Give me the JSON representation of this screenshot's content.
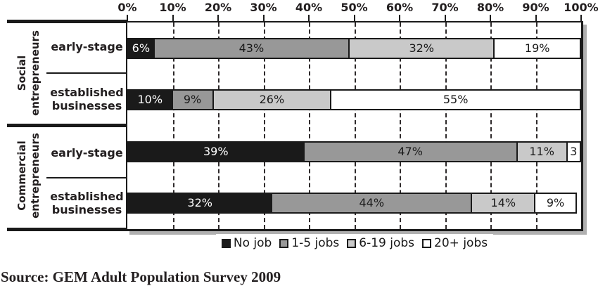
{
  "source_note": "Source: GEM Adult Population Survey 2009",
  "chart_data": {
    "type": "bar",
    "subtype": "horizontal-stacked-100-percent",
    "x_axis": {
      "tick_labels": [
        "0%",
        "10%",
        "20%",
        "30%",
        "40%",
        "50%",
        "60%",
        "70%",
        "80%",
        "90%",
        "100%"
      ],
      "range": [
        0,
        100
      ],
      "gridlines": "dashed-vertical"
    },
    "buckets": [
      "No job",
      "1-5 jobs",
      "6-19 jobs",
      "20+ jobs"
    ],
    "bucket_colors": [
      "#1a1a1a",
      "#989898",
      "#c9c9c9",
      "#ffffff"
    ],
    "bucket_text_colors": [
      "#ffffff",
      "#1a1a1a",
      "#1a1a1a",
      "#1a1a1a"
    ],
    "groups": [
      {
        "label_line1": "Social",
        "label_line2": "entrepreneurs"
      },
      {
        "label_line1": "Commercial",
        "label_line2": "entrepreneurs"
      }
    ],
    "rows": [
      {
        "group": "Social entrepreneurs",
        "label_line1": "early-stage",
        "label_line2": "",
        "values": [
          6,
          43,
          32,
          19
        ],
        "value_labels": [
          "6%",
          "43%",
          "32%",
          "19%"
        ]
      },
      {
        "group": "Social entrepreneurs",
        "label_line1": "established",
        "label_line2": "businesses",
        "values": [
          10,
          9,
          26,
          55
        ],
        "value_labels": [
          "10%",
          "9%",
          "26%",
          "55%"
        ]
      },
      {
        "group": "Commercial entrepreneurs",
        "label_line1": "early-stage",
        "label_line2": "",
        "values": [
          39,
          47,
          11,
          3
        ],
        "value_labels": [
          "39%",
          "47%",
          "11%",
          "3"
        ]
      },
      {
        "group": "Commercial entrepreneurs",
        "label_line1": "established",
        "label_line2": "businesses",
        "values": [
          32,
          44,
          14,
          9
        ],
        "value_labels": [
          "32%",
          "44%",
          "14%",
          "9%"
        ]
      }
    ],
    "legend": {
      "position": "bottom-center",
      "items": [
        {
          "label": "No job",
          "swatch": "#1a1a1a"
        },
        {
          "label": "1-5 jobs",
          "swatch": "#989898"
        },
        {
          "label": "6-19 jobs",
          "swatch": "#c9c9c9"
        },
        {
          "label": "20+ jobs",
          "swatch": "#ffffff"
        }
      ]
    }
  }
}
